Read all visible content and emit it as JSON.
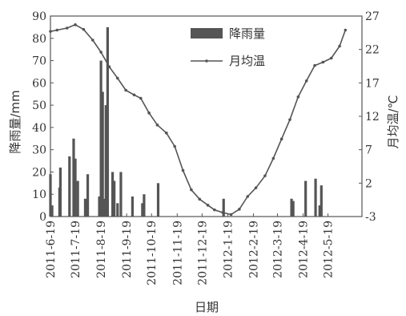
{
  "chart_data": {
    "type": "bar+line",
    "xlabel": "日期",
    "ylabel_left": "降雨量/mm",
    "ylabel_right": "月均温/℃",
    "y_left_range": [
      0,
      90
    ],
    "y_left_ticks": [
      "0",
      "10",
      "20",
      "30",
      "40",
      "50",
      "60",
      "70",
      "80",
      "90"
    ],
    "y_right_range": [
      -3,
      27
    ],
    "y_right_ticks": [
      "-3",
      "2",
      "7",
      "12",
      "17",
      "22",
      "27"
    ],
    "x_range": [
      "2011-06-19",
      "2012-06-29"
    ],
    "x_ticks": [
      "2011-6-19",
      "2011-7-19",
      "2011-8-19",
      "2011-9-19",
      "2011-10-19",
      "2011-11-19",
      "2011-12-19",
      "2012-1-19",
      "2012-2-19",
      "2012-3-19",
      "2012-4-19",
      "2012-5-19"
    ],
    "legend": [
      {
        "name": "降雨量",
        "kind": "bar"
      },
      {
        "name": "月均温",
        "kind": "line"
      }
    ],
    "series": [
      {
        "name": "降雨量",
        "type": "bar",
        "color": "#555555",
        "points": [
          {
            "x": "2011-06-19",
            "y": 19
          },
          {
            "x": "2011-06-21",
            "y": 5
          },
          {
            "x": "2011-06-30",
            "y": 13
          },
          {
            "x": "2011-07-01",
            "y": 22
          },
          {
            "x": "2011-07-12",
            "y": 27
          },
          {
            "x": "2011-07-17",
            "y": 35
          },
          {
            "x": "2011-07-19",
            "y": 26
          },
          {
            "x": "2011-07-22",
            "y": 16
          },
          {
            "x": "2011-07-31",
            "y": 8
          },
          {
            "x": "2011-08-03",
            "y": 19
          },
          {
            "x": "2011-08-17",
            "y": 9
          },
          {
            "x": "2011-08-19",
            "y": 70
          },
          {
            "x": "2011-08-21",
            "y": 56
          },
          {
            "x": "2011-08-23",
            "y": 8
          },
          {
            "x": "2011-08-25",
            "y": 50
          },
          {
            "x": "2011-08-27",
            "y": 85
          },
          {
            "x": "2011-09-02",
            "y": 20
          },
          {
            "x": "2011-09-04",
            "y": 16
          },
          {
            "x": "2011-09-08",
            "y": 6
          },
          {
            "x": "2011-09-12",
            "y": 20
          },
          {
            "x": "2011-09-26",
            "y": 9
          },
          {
            "x": "2011-10-08",
            "y": 6
          },
          {
            "x": "2011-10-10",
            "y": 10
          },
          {
            "x": "2011-10-27",
            "y": 15
          },
          {
            "x": "2012-01-14",
            "y": 8
          },
          {
            "x": "2012-04-05",
            "y": 8
          },
          {
            "x": "2012-04-07",
            "y": 7
          },
          {
            "x": "2012-04-22",
            "y": 16
          },
          {
            "x": "2012-05-04",
            "y": 17
          },
          {
            "x": "2012-05-09",
            "y": 5
          },
          {
            "x": "2012-05-11",
            "y": 14
          }
        ]
      },
      {
        "name": "月均温",
        "type": "line",
        "color": "#555555",
        "marker": "dot",
        "points": [
          {
            "x": "2011-06-19",
            "y": 24.7
          },
          {
            "x": "2011-06-27",
            "y": 24.9
          },
          {
            "x": "2011-07-09",
            "y": 25.2
          },
          {
            "x": "2011-07-19",
            "y": 25.7
          },
          {
            "x": "2011-07-29",
            "y": 25.0
          },
          {
            "x": "2011-08-09",
            "y": 23.4
          },
          {
            "x": "2011-08-19",
            "y": 21.6
          },
          {
            "x": "2011-08-29",
            "y": 19.4
          },
          {
            "x": "2011-09-08",
            "y": 17.7
          },
          {
            "x": "2011-09-18",
            "y": 15.9
          },
          {
            "x": "2011-09-28",
            "y": 15.2
          },
          {
            "x": "2011-10-06",
            "y": 14.7
          },
          {
            "x": "2011-10-16",
            "y": 12.5
          },
          {
            "x": "2011-10-26",
            "y": 10.7
          },
          {
            "x": "2011-11-06",
            "y": 9.5
          },
          {
            "x": "2011-11-16",
            "y": 7.5
          },
          {
            "x": "2011-11-26",
            "y": 3.9
          },
          {
            "x": "2011-12-06",
            "y": 1.0
          },
          {
            "x": "2011-12-16",
            "y": -0.4
          },
          {
            "x": "2011-12-26",
            "y": -1.3
          },
          {
            "x": "2012-01-03",
            "y": -2.0
          },
          {
            "x": "2012-01-13",
            "y": -2.4
          },
          {
            "x": "2012-01-23",
            "y": -2.7
          },
          {
            "x": "2012-02-02",
            "y": -1.9
          },
          {
            "x": "2012-02-12",
            "y": 0.0
          },
          {
            "x": "2012-02-22",
            "y": 1.3
          },
          {
            "x": "2012-03-04",
            "y": 3.1
          },
          {
            "x": "2012-03-14",
            "y": 5.7
          },
          {
            "x": "2012-03-24",
            "y": 8.6
          },
          {
            "x": "2012-04-03",
            "y": 11.5
          },
          {
            "x": "2012-04-13",
            "y": 14.9
          },
          {
            "x": "2012-04-23",
            "y": 17.3
          },
          {
            "x": "2012-05-03",
            "y": 19.6
          },
          {
            "x": "2012-05-13",
            "y": 20.1
          },
          {
            "x": "2012-05-23",
            "y": 20.7
          },
          {
            "x": "2012-06-02",
            "y": 22.5
          },
          {
            "x": "2012-06-09",
            "y": 24.9
          }
        ]
      }
    ]
  }
}
